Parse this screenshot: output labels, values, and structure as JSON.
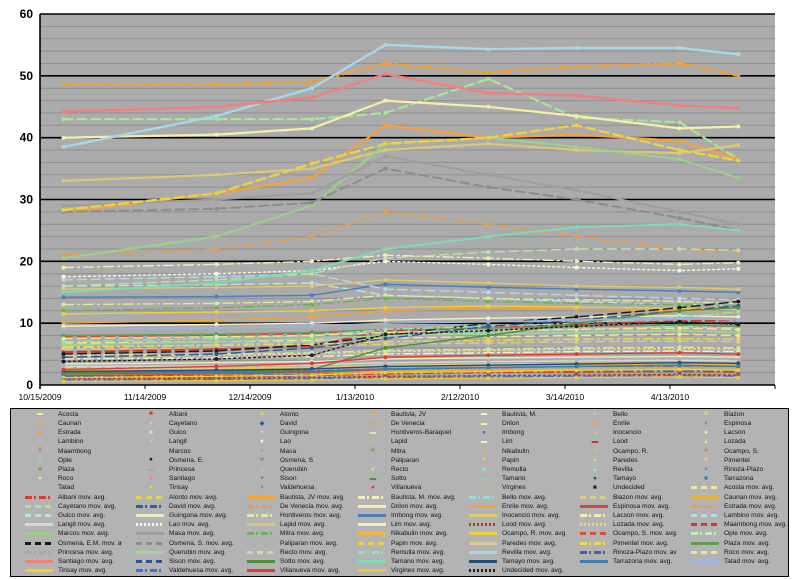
{
  "colors": {
    "page_bg": "#ffffff",
    "plot_bg": "#ababab",
    "minor_grid": "#8f8f8f",
    "major_grid": "#000000",
    "axis_text": "#000000",
    "legend_bg": "#b3b3b3"
  },
  "legend": {
    "movavg_suffix": " mov. avg."
  },
  "chart_data": {
    "type": "line",
    "title": "",
    "xlabel": "",
    "ylabel": "",
    "ylim": [
      0,
      60
    ],
    "grid": {
      "on": true,
      "minor_step": 2,
      "major_step": 10
    },
    "legend_position": "bottom",
    "y_tick_labels": [
      "0",
      "10",
      "20",
      "30",
      "40",
      "50",
      "60"
    ],
    "x_tick_labels": [
      "10/15/2009",
      "11/14/2009",
      "12/14/2009",
      "1/13/2010",
      "2/12/2010",
      "3/14/2010",
      "4/13/2010"
    ],
    "wave_positions": [
      0.032,
      0.24,
      0.37,
      0.47,
      0.61,
      0.73,
      0.87,
      0.95
    ],
    "series": [
      {
        "name": "Acosta",
        "color": "#efe8a0",
        "dash": "dash",
        "marker": "da",
        "values": [
          6.8,
          7,
          7.2,
          7.6,
          7.8,
          8,
          8.2,
          8
        ]
      },
      {
        "name": "Albani",
        "color": "#e03a2f",
        "dash": "dashdot",
        "marker": "sq",
        "values": [
          1.2,
          1.3,
          1.5,
          1.8,
          2,
          2.1,
          2.2,
          2.1
        ]
      },
      {
        "name": "Alonto",
        "color": "#e8d44d",
        "dash": "dash",
        "marker": "tr",
        "values": [
          2.8,
          3,
          3.2,
          3.6,
          3.8,
          4,
          4.1,
          4
        ]
      },
      {
        "name": "Bautista, JV",
        "color": "#f2a33c",
        "dash": "solid",
        "marker": "sq",
        "values": [
          10,
          10.5,
          11,
          12,
          12.5,
          12.2,
          12,
          11.8
        ]
      },
      {
        "name": "Bautista, M.",
        "color": "#f5efc0",
        "dash": "dashdot",
        "marker": "da",
        "values": [
          4.2,
          4.4,
          4.6,
          5,
          5.2,
          5.4,
          5.5,
          5.4
        ]
      },
      {
        "name": "Bello",
        "color": "#9fd5d8",
        "dash": "dashdot",
        "marker": "ci",
        "values": [
          6,
          6.5,
          7,
          8,
          8.5,
          9,
          9.5,
          9.2
        ]
      },
      {
        "name": "Biazon",
        "color": "#d8d08a",
        "dash": "dash",
        "marker": "sq",
        "values": [
          5.8,
          6,
          6.2,
          6.6,
          6.8,
          7,
          7.1,
          7
        ]
      },
      {
        "name": "Caunan",
        "color": "#e2b33c",
        "dash": "solid",
        "marker": "tr",
        "values": [
          1.6,
          1.7,
          1.9,
          2.2,
          2.4,
          2.5,
          2.6,
          2.5
        ]
      },
      {
        "name": "Cayetano",
        "color": "#a8e4a0",
        "dash": "dash",
        "marker": "ci",
        "w": 2.2,
        "values": [
          43,
          43,
          43,
          44,
          49.5,
          43.2,
          42.5,
          36.5
        ]
      },
      {
        "name": "David",
        "color": "#2e5fa3",
        "dash": "dashdot",
        "marker": "di",
        "values": [
          2,
          2.1,
          2.3,
          2.7,
          2.9,
          3,
          3.1,
          3
        ]
      },
      {
        "name": "De Venecia",
        "color": "#f09a3e",
        "dash": "dashdot",
        "marker": "ci",
        "values": [
          21,
          22,
          24,
          28,
          26,
          24,
          22,
          21.5
        ]
      },
      {
        "name": "Drilon",
        "color": "#f5efa9",
        "dash": "solid",
        "marker": "da",
        "w": 2.2,
        "values": [
          40,
          40.5,
          41.5,
          46,
          45,
          43.5,
          41.5,
          41.8
        ]
      },
      {
        "name": "Enrile",
        "color": "#f6a13b",
        "dash": "solid",
        "marker": "sq",
        "w": 2.2,
        "values": [
          28,
          31,
          33.5,
          42,
          40,
          40.5,
          39.5,
          36.5
        ]
      },
      {
        "name": "Espinosa",
        "color": "#d9453b",
        "dash": "solid",
        "marker": "x",
        "values": [
          1.5,
          1.8,
          2,
          2.5,
          2.8,
          3,
          3.2,
          3
        ]
      },
      {
        "name": "Estrada",
        "color": "#f0a030",
        "dash": "dashdot",
        "marker": "di",
        "w": 2.4,
        "values": [
          48.6,
          48.6,
          49,
          52,
          50.5,
          51.5,
          52,
          50
        ]
      },
      {
        "name": "Guico",
        "color": "#bfe3dc",
        "dash": "dash",
        "marker": "sq",
        "values": [
          16,
          16.2,
          16.5,
          14.5,
          14,
          13.5,
          13,
          12.8
        ]
      },
      {
        "name": "Guingona",
        "color": "#e6efc2",
        "dash": "solid",
        "marker": "pl",
        "values": [
          3.4,
          3.6,
          3.8,
          4.2,
          4.4,
          4.5,
          4.6,
          4.5
        ]
      },
      {
        "name": "Hontiveros-Baraquel",
        "color": "#dde9a0",
        "dash": "dashdot",
        "marker": "da",
        "avg_label": "Hontiveros",
        "values": [
          13,
          13.2,
          13.5,
          14.5,
          14,
          13.8,
          13.5,
          13.2
        ]
      },
      {
        "name": "Imbong",
        "color": "#4a7ebb",
        "dash": "solid",
        "marker": "ci",
        "values": [
          14.2,
          14.3,
          14.5,
          16.3,
          15.8,
          15.5,
          15.2,
          15
        ]
      },
      {
        "name": "Inocencio",
        "color": "#e0c96e",
        "dash": "solid",
        "marker": "ci",
        "values": [
          15.5,
          15.8,
          16,
          17,
          16.5,
          16,
          15.8,
          15.5
        ]
      },
      {
        "name": "Lacson",
        "color": "#f2ecb5",
        "dash": "dashdot",
        "marker": "ci",
        "values": [
          19,
          19.5,
          20,
          21,
          20.5,
          20,
          19.5,
          19.8
        ]
      },
      {
        "name": "Lambino",
        "color": "#b9d6ea",
        "dash": "dash",
        "marker": "x",
        "values": [
          17,
          17.5,
          18,
          15.5,
          15,
          14.5,
          14,
          13.8
        ]
      },
      {
        "name": "Langit",
        "color": "#d8d8d8",
        "dash": "solid",
        "marker": "x",
        "values": [
          3,
          3.1,
          3.3,
          3.6,
          3.8,
          3.9,
          4,
          3.9
        ]
      },
      {
        "name": "Lao",
        "color": "#faf6e0",
        "dash": "dot",
        "marker": "ci",
        "values": [
          17.5,
          18,
          18.5,
          20,
          19.5,
          19,
          18.5,
          18.8
        ]
      },
      {
        "name": "Lapid",
        "color": "#d9c878",
        "dash": "solid",
        "marker": "pl",
        "w": 2.2,
        "values": [
          33,
          34,
          35,
          38,
          39,
          38,
          37.5,
          38.8
        ]
      },
      {
        "name": "Lim",
        "color": "#f3edc0",
        "dash": "solid",
        "marker": "da",
        "values": [
          9.5,
          9.8,
          10,
          10.5,
          10.8,
          11,
          11.2,
          11
        ]
      },
      {
        "name": "Lood",
        "color": "#b03a2e",
        "dash": "dot",
        "marker": "da",
        "values": [
          1,
          1.1,
          1.2,
          1.4,
          1.5,
          1.6,
          1.7,
          1.6
        ]
      },
      {
        "name": "Lozada",
        "color": "#efd97a",
        "dash": "dot",
        "marker": "tr",
        "values": [
          4.6,
          4.8,
          5,
          5.4,
          5.6,
          5.8,
          5.9,
          5.8
        ]
      },
      {
        "name": "Maambong",
        "color": "#cc3b33",
        "dash": "dash",
        "marker": "x",
        "w": 2,
        "values": [
          5.3,
          5.8,
          6.3,
          8.8,
          9.3,
          9.8,
          10.3,
          10.5
        ]
      },
      {
        "name": "Marcos",
        "color": "#9cce8c",
        "dash": "solid",
        "marker": "ci",
        "w": 2.2,
        "values": [
          20.5,
          24,
          29,
          39,
          40,
          38.5,
          36.5,
          33.5
        ]
      },
      {
        "name": "Masa",
        "color": "#9e9e9e",
        "dash": "solid",
        "marker": "ci",
        "w": 2,
        "values": [
          29,
          30,
          31,
          37,
          34,
          31.5,
          28,
          26
        ]
      },
      {
        "name": "Mitra",
        "color": "#6faf5e",
        "dash": "dashdot",
        "marker": "sq",
        "values": [
          12,
          12.5,
          13,
          14,
          13.5,
          13.2,
          13,
          12.8
        ]
      },
      {
        "name": "Nikabulin",
        "color": "#efb73e",
        "dash": "solid",
        "marker": "ci",
        "values": [
          2.4,
          2.5,
          2.7,
          3,
          3.2,
          3.3,
          3.4,
          3.3
        ]
      },
      {
        "name": "Ocampo, R.",
        "color": "#efce3c",
        "dash": "solid",
        "marker": "pl",
        "values": [
          11.5,
          11.8,
          12,
          12.5,
          12.8,
          12.6,
          12.4,
          12.2
        ]
      },
      {
        "name": "Ocampo, S.",
        "color": "#d84c42",
        "dash": "dash",
        "marker": "x",
        "values": [
          7.8,
          8,
          8.3,
          9,
          9.3,
          9.5,
          9.7,
          9.5
        ]
      },
      {
        "name": "Ople",
        "color": "#c9e8b8",
        "dash": "dashdot",
        "marker": "pl",
        "values": [
          4.8,
          5,
          5.2,
          5.6,
          5.8,
          6,
          6.1,
          6
        ]
      },
      {
        "name": "Osmena, E.",
        "color": "#1a1a1a",
        "dash": "dash",
        "marker": "ci",
        "avg_label": "Osmena, E.M.",
        "values": [
          5,
          5.5,
          6.5,
          8,
          10,
          11,
          12.5,
          13.5
        ]
      },
      {
        "name": "Osmena, S",
        "color": "#8c8c8c",
        "dash": "dash",
        "marker": "sq",
        "w": 2,
        "avg_label": "Osmena, S.",
        "values": [
          28,
          28.5,
          29.5,
          35,
          32,
          30,
          27,
          25
        ]
      },
      {
        "name": "Paliparan",
        "color": "#b0b0b0",
        "dash": "dot",
        "marker": "tr",
        "values": [
          3.2,
          3.3,
          3.5,
          3.8,
          4,
          4.1,
          4.2,
          4.1
        ]
      },
      {
        "name": "Papin",
        "color": "#e9d24a",
        "dash": "dash",
        "marker": "ci",
        "w": 2.4,
        "values": [
          28.3,
          31,
          35.8,
          39,
          40,
          42,
          38,
          36.3
        ]
      },
      {
        "name": "Paredes",
        "color": "#d8cb92",
        "dash": "solid",
        "marker": "tr",
        "values": [
          2.6,
          2.7,
          2.9,
          3.2,
          3.4,
          3.5,
          3.6,
          3.5
        ]
      },
      {
        "name": "Pimentel",
        "color": "#edd94f",
        "dash": "dashdot",
        "marker": "ci",
        "values": [
          6.2,
          6.4,
          6.6,
          7,
          7.2,
          7.4,
          7.5,
          7.4
        ]
      },
      {
        "name": "Plaza",
        "color": "#5e9e4e",
        "dash": "solid",
        "marker": "st",
        "values": [
          8,
          8.2,
          8.5,
          9,
          9.2,
          9.5,
          9.8,
          9.5
        ]
      },
      {
        "name": "Princesa",
        "color": "#a8a8a8",
        "dash": "dashdot",
        "marker": "da",
        "values": [
          2.2,
          2.3,
          2.5,
          2.8,
          3,
          3.1,
          3.2,
          3.1
        ]
      },
      {
        "name": "Querubin",
        "color": "#9fd98f",
        "dash": "solid",
        "marker": "tr",
        "values": [
          6.5,
          7,
          7.5,
          8,
          8.2,
          8.5,
          8.8,
          8.5
        ]
      },
      {
        "name": "Recto",
        "color": "#bce3a6",
        "dash": "dash",
        "marker": "ci",
        "values": [
          16,
          17,
          18,
          20.5,
          21.5,
          22,
          22,
          21.8
        ]
      },
      {
        "name": "Remulla",
        "color": "#8fe0c0",
        "dash": "dashdot",
        "marker": "sq",
        "values": [
          7,
          7.5,
          8,
          9,
          9.5,
          10,
          11,
          11.8
        ]
      },
      {
        "name": "Revilla",
        "color": "#a8d8e8",
        "dash": "solid",
        "marker": "tr",
        "w": 2.4,
        "values": [
          38.5,
          43.5,
          48,
          55,
          54.3,
          54.5,
          54.5,
          53.5
        ]
      },
      {
        "name": "Rinoza-Plazo",
        "color": "#3a66b0",
        "dash": "dashdot",
        "marker": "x",
        "values": [
          1.4,
          1.5,
          1.7,
          2,
          2.2,
          2.3,
          2.4,
          2.3
        ]
      },
      {
        "name": "Roco",
        "color": "#f0e68c",
        "dash": "dash",
        "marker": "ci",
        "values": [
          7.5,
          7.8,
          8,
          8.5,
          8.8,
          9,
          9.2,
          9
        ]
      },
      {
        "name": "Santiago",
        "color": "#f08080",
        "dash": "solid",
        "marker": "sq",
        "w": 2.4,
        "values": [
          44.2,
          45,
          46.5,
          50.3,
          47.2,
          46.8,
          45.2,
          44.8
        ]
      },
      {
        "name": "Sison",
        "color": "#2f5597",
        "dash": "dash",
        "marker": "pl",
        "values": [
          4.5,
          5,
          6,
          7.5,
          9.5,
          10.5,
          12,
          12.8
        ]
      },
      {
        "name": "Sotto",
        "color": "#4e8f3a",
        "dash": "solid",
        "marker": "da",
        "values": [
          2,
          2.2,
          2.5,
          6,
          8,
          10,
          12,
          12.5
        ]
      },
      {
        "name": "Tamano",
        "color": "#7fd9b5",
        "dash": "solid",
        "marker": "da",
        "w": 2,
        "values": [
          15,
          16.5,
          18.5,
          22,
          24,
          25.5,
          26,
          25
        ]
      },
      {
        "name": "Tamayo",
        "color": "#1f4e79",
        "dash": "solid",
        "marker": "ci",
        "values": [
          2.2,
          2.4,
          2.6,
          3,
          3.2,
          3.4,
          3.6,
          3.5
        ]
      },
      {
        "name": "Tarrazona",
        "color": "#3d7eaa",
        "dash": "solid",
        "marker": "sq",
        "values": [
          1.8,
          2,
          2.2,
          2.6,
          2.8,
          3,
          3.2,
          3
        ]
      },
      {
        "name": "Tatad",
        "color": "#9fb5e0",
        "dash": "solid",
        "marker": "tr",
        "values": [
          9,
          9.2,
          9.5,
          10,
          10.2,
          10.5,
          10.8,
          10.5
        ]
      },
      {
        "name": "Tinsay",
        "color": "#f0d020",
        "dash": "solid",
        "marker": "sq",
        "values": [
          1.2,
          1.4,
          1.6,
          2,
          2.2,
          2.4,
          2.5,
          2.4
        ]
      },
      {
        "name": "Valdehuesa",
        "color": "#4472c4",
        "dash": "dashdot",
        "marker": "x",
        "values": [
          0.8,
          0.9,
          1,
          1.2,
          1.3,
          1.4,
          1.5,
          1.4
        ]
      },
      {
        "name": "Villanueva",
        "color": "#e03c31",
        "dash": "solid",
        "marker": "ci",
        "values": [
          2.5,
          3,
          3.5,
          4.5,
          4.8,
          5,
          5.2,
          5
        ]
      },
      {
        "name": "Virgines",
        "color": "#e8c93e",
        "dash": "solid",
        "marker": "pl",
        "values": [
          0.6,
          0.7,
          0.8,
          1,
          1.1,
          1.2,
          1.3,
          1.2
        ]
      },
      {
        "name": "Undecided",
        "color": "#222222",
        "dash": "dot",
        "marker": "sq",
        "values": [
          3.8,
          4.2,
          4.8,
          8.2,
          8.8,
          9.5,
          10.2,
          9.8
        ]
      }
    ]
  }
}
